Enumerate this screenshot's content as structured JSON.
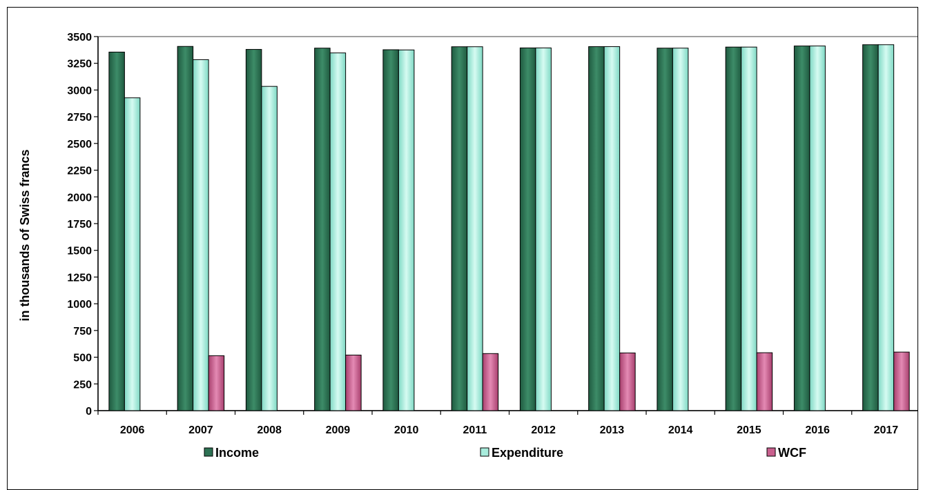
{
  "chart_data": {
    "type": "bar",
    "title": "",
    "xlabel": "",
    "ylabel": "in thousands of Swiss francs",
    "ylim": [
      0,
      3500
    ],
    "yticks": [
      0,
      250,
      500,
      750,
      1000,
      1250,
      1500,
      1750,
      2000,
      2250,
      2500,
      2750,
      3000,
      3250,
      3500
    ],
    "grid": false,
    "legend_position": "bottom",
    "categories": [
      "2006",
      "2007",
      "2008",
      "2009",
      "2010",
      "2011",
      "2012",
      "2013",
      "2014",
      "2015",
      "2016",
      "2017"
    ],
    "series": [
      {
        "name": "Income",
        "color": "#2e7254",
        "values": [
          3355,
          3408,
          3380,
          3392,
          3377,
          3405,
          3394,
          3406,
          3392,
          3402,
          3412,
          3424
        ]
      },
      {
        "name": "Expenditure",
        "color": "#a8ecdc",
        "values": [
          2927,
          3284,
          3034,
          3347,
          3375,
          3405,
          3394,
          3406,
          3392,
          3402,
          3412,
          3424
        ]
      },
      {
        "name": "WCF",
        "color": "#c9608e",
        "values": [
          null,
          514,
          null,
          520,
          null,
          534,
          null,
          540,
          null,
          542,
          null,
          548
        ]
      }
    ]
  }
}
